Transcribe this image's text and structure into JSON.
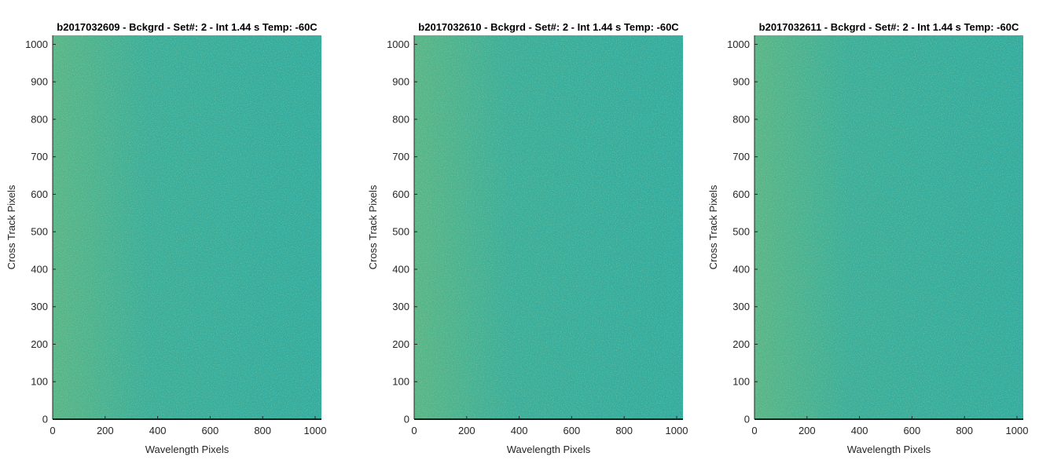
{
  "chart_data": [
    {
      "type": "heatmap",
      "title": "b2017032609 - Bckgrd - Set#: 2 - Int 1.44 s Temp: -60C",
      "xlabel": "Wavelength Pixels",
      "ylabel": "Cross Track Pixels",
      "xlim": [
        0,
        1024
      ],
      "ylim": [
        0,
        1024
      ],
      "xticks": [
        0,
        200,
        400,
        600,
        800,
        1000
      ],
      "yticks": [
        0,
        100,
        200,
        300,
        400,
        500,
        600,
        700,
        800,
        900,
        1000
      ],
      "colormap": "parula",
      "base_color": "#30ab9f",
      "noise_color": "#86c06a",
      "grid": false
    },
    {
      "type": "heatmap",
      "title": "b2017032610 - Bckgrd - Set#: 2 - Int 1.44 s Temp: -60C",
      "xlabel": "Wavelength Pixels",
      "ylabel": "Cross Track Pixels",
      "xlim": [
        0,
        1024
      ],
      "ylim": [
        0,
        1024
      ],
      "xticks": [
        0,
        200,
        400,
        600,
        800,
        1000
      ],
      "yticks": [
        0,
        100,
        200,
        300,
        400,
        500,
        600,
        700,
        800,
        900,
        1000
      ],
      "colormap": "parula",
      "base_color": "#30ab9f",
      "noise_color": "#86c06a",
      "grid": false
    },
    {
      "type": "heatmap",
      "title": "b2017032611 - Bckgrd - Set#: 2 - Int 1.44 s Temp: -60C",
      "xlabel": "Wavelength Pixels",
      "ylabel": "Cross Track Pixels",
      "xlim": [
        0,
        1024
      ],
      "ylim": [
        0,
        1024
      ],
      "xticks": [
        0,
        200,
        400,
        600,
        800,
        1000
      ],
      "yticks": [
        0,
        100,
        200,
        300,
        400,
        500,
        600,
        700,
        800,
        900,
        1000
      ],
      "colormap": "parula",
      "base_color": "#30ab9f",
      "noise_color": "#86c06a",
      "grid": false
    }
  ]
}
